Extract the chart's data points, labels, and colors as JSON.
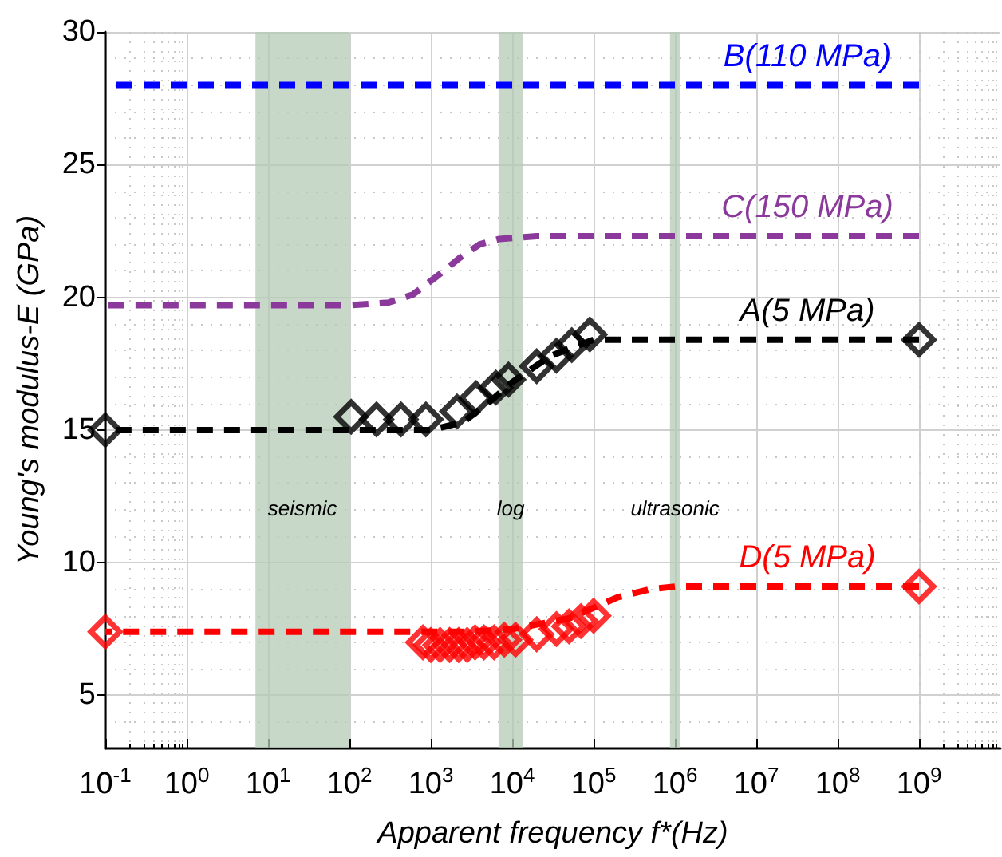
{
  "chart_data": {
    "type": "line",
    "xlabel": "Apparent frequency f*(Hz)",
    "ylabel": "Young's modulus-E (GPa)",
    "log": "x",
    "grid": true,
    "legend": false,
    "marker": "diamond",
    "line_style": "dashed",
    "xlim": [
      0.1,
      10000000000
    ],
    "ylim": [
      3,
      30
    ],
    "xticks": [
      {
        "value": 0.1,
        "label": "10$^{-1}$"
      },
      {
        "value": 1,
        "label": "10$^{0}$"
      },
      {
        "value": 10,
        "label": "10$^{1}$"
      },
      {
        "value": 100,
        "label": "10$^{2}$"
      },
      {
        "value": 1000,
        "label": "10$^{3}$"
      },
      {
        "value": 10000,
        "label": "10$^{4}$"
      },
      {
        "value": 100000,
        "label": "10$^{5}$"
      },
      {
        "value": 1000000,
        "label": "10$^{6}$"
      },
      {
        "value": 10000000,
        "label": "10$^{7}$"
      },
      {
        "value": 100000000,
        "label": "10$^{8}$"
      },
      {
        "value": 1000000000,
        "label": "10$^{9}$"
      }
    ],
    "yticks": [
      5,
      10,
      15,
      20,
      25,
      30
    ],
    "bands": [
      {
        "axis": "x",
        "from": 7,
        "to": 100,
        "label": "seismic",
        "color": "#b5cbb5"
      },
      {
        "axis": "x",
        "from": 6800,
        "to": 13500,
        "label": "log",
        "color": "#b5cbb5"
      },
      {
        "axis": "x",
        "from": 870000,
        "to": 1150000,
        "label": "ultrasonic",
        "color": "#b5cbb5"
      }
    ],
    "series": [
      {
        "name": "B(110 MPa)",
        "marker": "none",
        "color": "#0000ff",
        "x": [
          0.1,
          1000000000
        ],
        "values": [
          28,
          28
        ]
      },
      {
        "name": "C(150 MPa)",
        "marker": "none",
        "color": "#8b3a9b",
        "x": [
          0.1,
          100,
          300,
          600,
          1200,
          2300,
          4000,
          7000,
          20000,
          1000000000
        ],
        "values": [
          19.7,
          19.7,
          19.8,
          20.1,
          20.8,
          21.5,
          22.0,
          22.2,
          22.3,
          22.3
        ]
      },
      {
        "name": "A(5 MPa)",
        "marker": "none",
        "color": "#000000",
        "x": [
          0.1,
          1000,
          2500,
          5000,
          10000,
          30000,
          100000,
          150000,
          1000000000
        ],
        "values": [
          15,
          15,
          15.3,
          16.0,
          16.8,
          17.8,
          18.4,
          18.4,
          18.4
        ]
      },
      {
        "type": "scatter",
        "color": "#000000",
        "x": [
          0.1,
          105,
          215,
          430,
          870,
          2100,
          3600,
          6300,
          9000,
          20000,
          35000,
          54000,
          90000,
          1000000000
        ],
        "values": [
          15,
          15.5,
          15.4,
          15.4,
          15.4,
          15.7,
          16.2,
          16.6,
          16.9,
          17.4,
          17.8,
          18.2,
          18.6,
          18.4
        ]
      },
      {
        "name": "D(5 MPa)",
        "marker": "none",
        "color": "#ff0000",
        "x": [
          0.1,
          3000,
          10000,
          50000,
          200000,
          500000,
          1000000,
          1000000000
        ],
        "values": [
          7.4,
          7.4,
          7.5,
          7.9,
          8.7,
          9.0,
          9.1,
          9.1
        ]
      },
      {
        "type": "scatter",
        "color": "#ff0000",
        "x": [
          0.1,
          800,
          1000,
          1300,
          1700,
          2200,
          2800,
          3500,
          4500,
          6000,
          8000,
          11000,
          20000,
          35000,
          50000,
          70000,
          100000,
          1000000000
        ],
        "values": [
          7.4,
          7.0,
          6.9,
          6.9,
          6.9,
          6.9,
          6.9,
          7.0,
          7.0,
          7.0,
          7.1,
          7.1,
          7.3,
          7.5,
          7.6,
          7.8,
          8.0,
          9.1
        ]
      }
    ]
  }
}
